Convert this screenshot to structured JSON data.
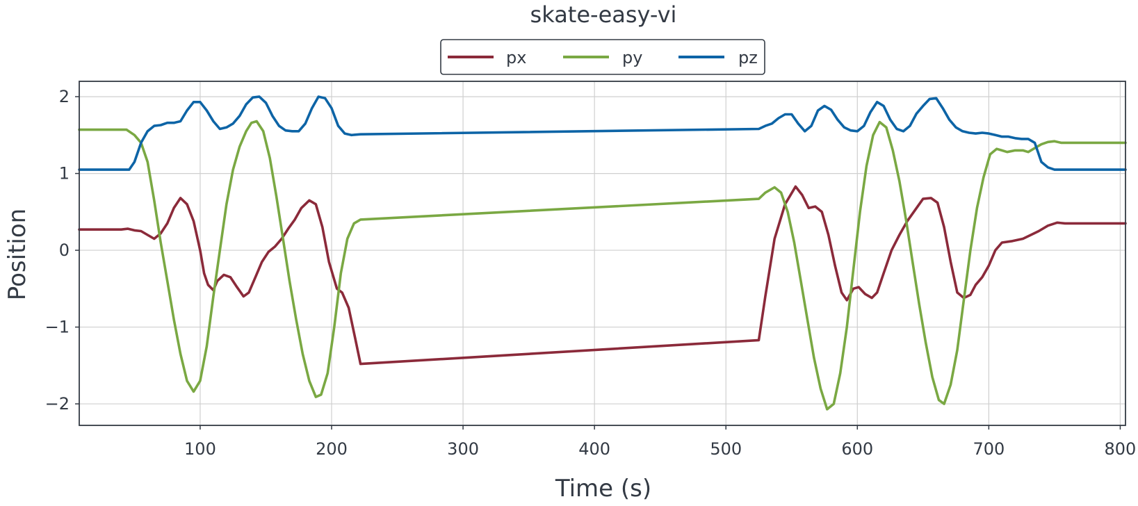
{
  "chart_data": {
    "type": "line",
    "title": "skate-easy-vi",
    "xlabel": "Time (s)",
    "ylabel": "Position",
    "xlim": [
      8,
      804
    ],
    "ylim": [
      -2.28,
      2.2
    ],
    "xticks": [
      100,
      200,
      300,
      400,
      500,
      600,
      700,
      800
    ],
    "xtick_labels": [
      "100",
      "200",
      "300",
      "400",
      "500",
      "600",
      "700",
      "800"
    ],
    "yticks": [
      2,
      1,
      0,
      -1,
      -2
    ],
    "ytick_labels": [
      "2",
      "1",
      "0",
      "−1",
      "−2"
    ],
    "grid": true,
    "legend_position": "top-center",
    "series": [
      {
        "name": "px",
        "color": "#8b2a3a",
        "points": [
          [
            8,
            0.27
          ],
          [
            40,
            0.27
          ],
          [
            45,
            0.28
          ],
          [
            50,
            0.26
          ],
          [
            55,
            0.25
          ],
          [
            60,
            0.2
          ],
          [
            65,
            0.15
          ],
          [
            70,
            0.22
          ],
          [
            75,
            0.35
          ],
          [
            80,
            0.55
          ],
          [
            85,
            0.68
          ],
          [
            90,
            0.6
          ],
          [
            95,
            0.38
          ],
          [
            100,
            0.0
          ],
          [
            103,
            -0.3
          ],
          [
            106,
            -0.45
          ],
          [
            110,
            -0.52
          ],
          [
            113,
            -0.4
          ],
          [
            118,
            -0.32
          ],
          [
            123,
            -0.35
          ],
          [
            128,
            -0.48
          ],
          [
            133,
            -0.6
          ],
          [
            137,
            -0.55
          ],
          [
            142,
            -0.35
          ],
          [
            147,
            -0.15
          ],
          [
            152,
            -0.02
          ],
          [
            157,
            0.05
          ],
          [
            162,
            0.15
          ],
          [
            167,
            0.28
          ],
          [
            172,
            0.4
          ],
          [
            177,
            0.55
          ],
          [
            183,
            0.65
          ],
          [
            188,
            0.6
          ],
          [
            193,
            0.3
          ],
          [
            198,
            -0.15
          ],
          [
            204,
            -0.5
          ],
          [
            208,
            -0.55
          ],
          [
            213,
            -0.75
          ],
          [
            218,
            -1.15
          ],
          [
            222,
            -1.48
          ],
          [
            525,
            -1.17
          ],
          [
            530,
            -0.6
          ],
          [
            537,
            0.15
          ],
          [
            545,
            0.6
          ],
          [
            553,
            0.83
          ],
          [
            558,
            0.72
          ],
          [
            563,
            0.55
          ],
          [
            568,
            0.57
          ],
          [
            573,
            0.5
          ],
          [
            578,
            0.2
          ],
          [
            583,
            -0.2
          ],
          [
            588,
            -0.55
          ],
          [
            592,
            -0.65
          ],
          [
            597,
            -0.5
          ],
          [
            601,
            -0.48
          ],
          [
            606,
            -0.57
          ],
          [
            611,
            -0.62
          ],
          [
            615,
            -0.55
          ],
          [
            620,
            -0.3
          ],
          [
            626,
            0.0
          ],
          [
            632,
            0.2
          ],
          [
            638,
            0.38
          ],
          [
            645,
            0.55
          ],
          [
            650,
            0.67
          ],
          [
            656,
            0.68
          ],
          [
            661,
            0.62
          ],
          [
            666,
            0.3
          ],
          [
            671,
            -0.15
          ],
          [
            676,
            -0.55
          ],
          [
            681,
            -0.62
          ],
          [
            686,
            -0.58
          ],
          [
            690,
            -0.45
          ],
          [
            695,
            -0.35
          ],
          [
            700,
            -0.2
          ],
          [
            705,
            0.0
          ],
          [
            710,
            0.1
          ],
          [
            718,
            0.12
          ],
          [
            726,
            0.15
          ],
          [
            732,
            0.2
          ],
          [
            738,
            0.25
          ],
          [
            745,
            0.32
          ],
          [
            752,
            0.36
          ],
          [
            758,
            0.35
          ],
          [
            804,
            0.35
          ]
        ]
      },
      {
        "name": "py",
        "color": "#7aa843",
        "points": [
          [
            8,
            1.57
          ],
          [
            44,
            1.57
          ],
          [
            50,
            1.5
          ],
          [
            55,
            1.4
          ],
          [
            60,
            1.15
          ],
          [
            65,
            0.65
          ],
          [
            70,
            0.1
          ],
          [
            75,
            -0.4
          ],
          [
            80,
            -0.9
          ],
          [
            85,
            -1.35
          ],
          [
            90,
            -1.7
          ],
          [
            95,
            -1.84
          ],
          [
            100,
            -1.7
          ],
          [
            105,
            -1.25
          ],
          [
            110,
            -0.6
          ],
          [
            115,
            0.0
          ],
          [
            120,
            0.6
          ],
          [
            125,
            1.05
          ],
          [
            130,
            1.35
          ],
          [
            135,
            1.55
          ],
          [
            139,
            1.66
          ],
          [
            143,
            1.68
          ],
          [
            148,
            1.55
          ],
          [
            153,
            1.2
          ],
          [
            158,
            0.7
          ],
          [
            163,
            0.15
          ],
          [
            168,
            -0.4
          ],
          [
            173,
            -0.9
          ],
          [
            178,
            -1.35
          ],
          [
            183,
            -1.7
          ],
          [
            188,
            -1.91
          ],
          [
            192,
            -1.88
          ],
          [
            197,
            -1.6
          ],
          [
            202,
            -1.0
          ],
          [
            207,
            -0.3
          ],
          [
            212,
            0.15
          ],
          [
            217,
            0.35
          ],
          [
            222,
            0.4
          ],
          [
            525,
            0.67
          ],
          [
            530,
            0.75
          ],
          [
            537,
            0.82
          ],
          [
            542,
            0.75
          ],
          [
            547,
            0.5
          ],
          [
            552,
            0.1
          ],
          [
            557,
            -0.4
          ],
          [
            562,
            -0.9
          ],
          [
            567,
            -1.4
          ],
          [
            572,
            -1.8
          ],
          [
            577,
            -2.07
          ],
          [
            582,
            -2.0
          ],
          [
            587,
            -1.6
          ],
          [
            592,
            -1.0
          ],
          [
            597,
            -0.25
          ],
          [
            602,
            0.5
          ],
          [
            607,
            1.1
          ],
          [
            612,
            1.5
          ],
          [
            617,
            1.67
          ],
          [
            622,
            1.6
          ],
          [
            627,
            1.3
          ],
          [
            632,
            0.9
          ],
          [
            637,
            0.4
          ],
          [
            642,
            -0.15
          ],
          [
            647,
            -0.7
          ],
          [
            652,
            -1.2
          ],
          [
            657,
            -1.65
          ],
          [
            662,
            -1.95
          ],
          [
            666,
            -2.0
          ],
          [
            671,
            -1.75
          ],
          [
            676,
            -1.3
          ],
          [
            681,
            -0.65
          ],
          [
            686,
            0.0
          ],
          [
            691,
            0.55
          ],
          [
            696,
            0.95
          ],
          [
            701,
            1.25
          ],
          [
            706,
            1.32
          ],
          [
            710,
            1.3
          ],
          [
            714,
            1.28
          ],
          [
            720,
            1.3
          ],
          [
            726,
            1.3
          ],
          [
            730,
            1.28
          ],
          [
            735,
            1.33
          ],
          [
            740,
            1.38
          ],
          [
            745,
            1.41
          ],
          [
            750,
            1.42
          ],
          [
            755,
            1.4
          ],
          [
            804,
            1.4
          ]
        ]
      },
      {
        "name": "pz",
        "color": "#0d64a6",
        "points": [
          [
            8,
            1.05
          ],
          [
            46,
            1.05
          ],
          [
            50,
            1.15
          ],
          [
            55,
            1.4
          ],
          [
            60,
            1.55
          ],
          [
            65,
            1.62
          ],
          [
            70,
            1.63
          ],
          [
            75,
            1.66
          ],
          [
            80,
            1.66
          ],
          [
            85,
            1.68
          ],
          [
            90,
            1.82
          ],
          [
            95,
            1.93
          ],
          [
            100,
            1.93
          ],
          [
            105,
            1.82
          ],
          [
            110,
            1.68
          ],
          [
            115,
            1.58
          ],
          [
            120,
            1.6
          ],
          [
            125,
            1.65
          ],
          [
            130,
            1.75
          ],
          [
            135,
            1.9
          ],
          [
            140,
            1.99
          ],
          [
            145,
            2.0
          ],
          [
            150,
            1.92
          ],
          [
            155,
            1.75
          ],
          [
            160,
            1.62
          ],
          [
            165,
            1.56
          ],
          [
            170,
            1.55
          ],
          [
            175,
            1.55
          ],
          [
            180,
            1.65
          ],
          [
            185,
            1.85
          ],
          [
            190,
            2.0
          ],
          [
            195,
            1.98
          ],
          [
            200,
            1.85
          ],
          [
            205,
            1.62
          ],
          [
            210,
            1.52
          ],
          [
            215,
            1.5
          ],
          [
            222,
            1.51
          ],
          [
            525,
            1.58
          ],
          [
            530,
            1.62
          ],
          [
            535,
            1.65
          ],
          [
            540,
            1.72
          ],
          [
            545,
            1.77
          ],
          [
            550,
            1.77
          ],
          [
            555,
            1.65
          ],
          [
            560,
            1.55
          ],
          [
            565,
            1.62
          ],
          [
            570,
            1.82
          ],
          [
            575,
            1.88
          ],
          [
            580,
            1.83
          ],
          [
            585,
            1.7
          ],
          [
            590,
            1.6
          ],
          [
            595,
            1.56
          ],
          [
            600,
            1.55
          ],
          [
            605,
            1.62
          ],
          [
            610,
            1.8
          ],
          [
            615,
            1.93
          ],
          [
            620,
            1.88
          ],
          [
            625,
            1.7
          ],
          [
            630,
            1.58
          ],
          [
            635,
            1.55
          ],
          [
            640,
            1.62
          ],
          [
            645,
            1.78
          ],
          [
            650,
            1.88
          ],
          [
            655,
            1.97
          ],
          [
            660,
            1.98
          ],
          [
            665,
            1.85
          ],
          [
            670,
            1.7
          ],
          [
            675,
            1.6
          ],
          [
            680,
            1.55
          ],
          [
            685,
            1.53
          ],
          [
            690,
            1.52
          ],
          [
            695,
            1.53
          ],
          [
            700,
            1.52
          ],
          [
            705,
            1.5
          ],
          [
            710,
            1.48
          ],
          [
            715,
            1.48
          ],
          [
            720,
            1.46
          ],
          [
            725,
            1.45
          ],
          [
            730,
            1.45
          ],
          [
            735,
            1.4
          ],
          [
            740,
            1.15
          ],
          [
            745,
            1.08
          ],
          [
            750,
            1.05
          ],
          [
            804,
            1.05
          ]
        ]
      }
    ]
  }
}
